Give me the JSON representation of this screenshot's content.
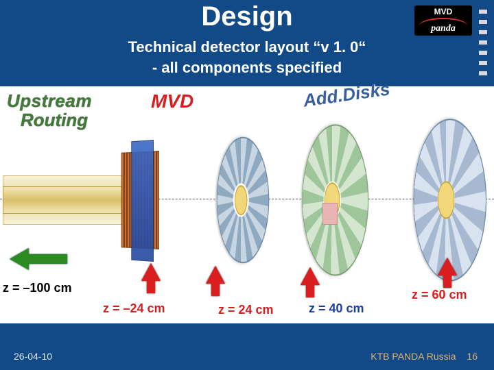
{
  "title": "Design",
  "subtitle_line1": "Technical detector layout “v 1. 0“",
  "subtitle_line2": "- all components specified",
  "logo": {
    "line1": "MVD",
    "line2": "panda"
  },
  "labels": {
    "upstream": "Upstream",
    "routing": "Routing",
    "mvd": "MVD",
    "adddisks": "Add.Disks"
  },
  "z": {
    "m100": "z = –100 cm",
    "m24": "z = –24 cm",
    "p24": "z = 24 cm",
    "p40": "z = 40 cm",
    "p60": "z = 60 cm"
  },
  "footer": {
    "date": "26-04-10",
    "right": "KTB   PANDA Russia",
    "page": "16"
  },
  "colors": {
    "bg": "#114a86",
    "green": "#2c8a22",
    "red": "#d81e1e",
    "blue": "#1a3ea0",
    "footer_right": "#d9b070"
  },
  "side_bullet_count": 7
}
